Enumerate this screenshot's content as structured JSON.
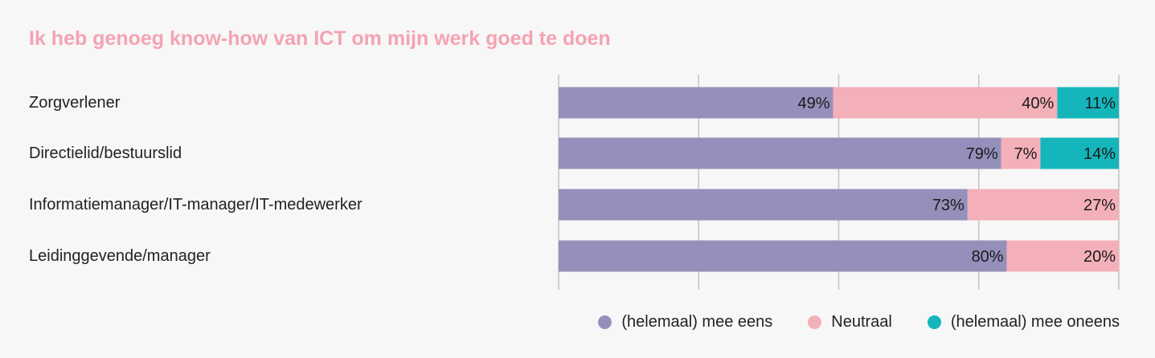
{
  "chart_data": {
    "type": "bar",
    "orientation": "horizontal",
    "stacked": true,
    "title": "Ik heb genoeg know-how van ICT om mijn werk goed te doen",
    "categories": [
      "Zorgverlener",
      "Directielid/bestuurslid",
      "Informatiemanager/IT-manager/IT-medewerker",
      "Leidinggevende/manager"
    ],
    "series": [
      {
        "name": "(helemaal) mee eens",
        "color": "#9590bb",
        "values": [
          49,
          79,
          73,
          80
        ]
      },
      {
        "name": "Neutraal",
        "color": "#f4b0b9",
        "values": [
          40,
          7,
          27,
          20
        ]
      },
      {
        "name": "(helemaal) mee oneens",
        "color": "#14b6bb",
        "values": [
          11,
          14,
          0,
          0
        ]
      }
    ],
    "data_labels": [
      [
        "49%",
        "40%",
        "11%"
      ],
      [
        "79%",
        "7%",
        "14%"
      ],
      [
        "73%",
        "27%",
        ""
      ],
      [
        "80%",
        "20%",
        ""
      ]
    ],
    "xlim": [
      0,
      100
    ],
    "grid": true,
    "legend_position": "bottom-right"
  }
}
